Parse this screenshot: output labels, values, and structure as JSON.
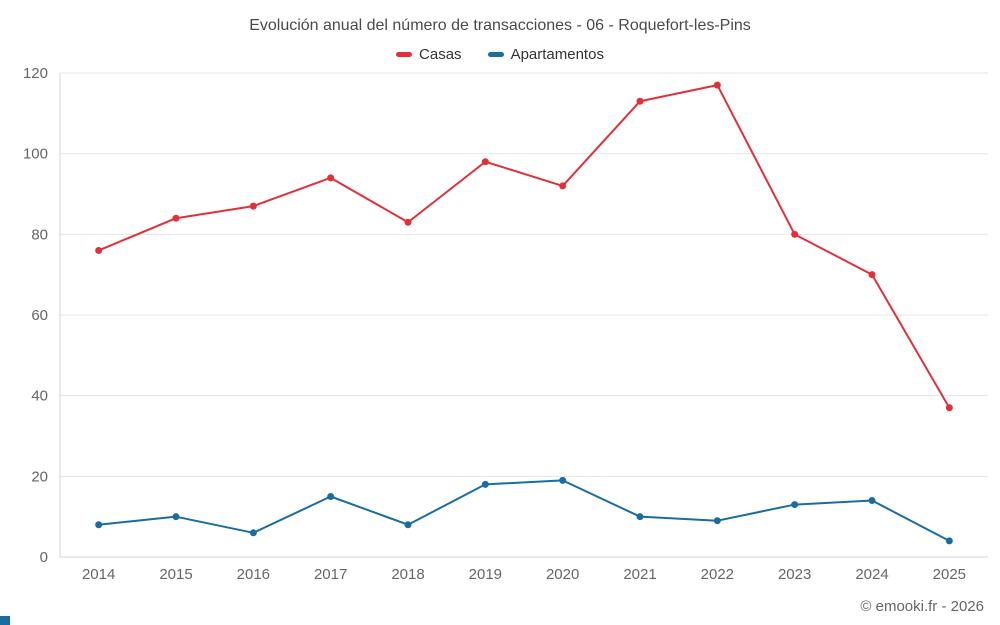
{
  "chart_data": {
    "type": "line",
    "title": "Evolución anual del número de transacciones - 06 - Roquefort-les-Pins",
    "categories": [
      "2014",
      "2015",
      "2016",
      "2017",
      "2018",
      "2019",
      "2020",
      "2021",
      "2022",
      "2023",
      "2024",
      "2025"
    ],
    "series": [
      {
        "name": "Casas",
        "color": "#e0313a",
        "values": [
          76,
          84,
          87,
          94,
          83,
          98,
          92,
          113,
          117,
          80,
          70,
          37
        ]
      },
      {
        "name": "Apartamentos",
        "color": "#1a6d9e",
        "values": [
          8,
          10,
          6,
          15,
          8,
          18,
          19,
          10,
          9,
          13,
          14,
          4
        ]
      }
    ],
    "xlabel": "",
    "ylabel": "",
    "ylim": [
      0,
      120
    ],
    "yticks": [
      0,
      20,
      40,
      60,
      80,
      100,
      120
    ],
    "grid": true,
    "legend_position": "top"
  },
  "colors": {
    "grid": "#e6e6e6",
    "axis": "#ccd6eb",
    "tick_text": "#666666",
    "title_text": "#4a4a4a",
    "accent_square": "#1a6d9e"
  },
  "footer": {
    "attribution": "© emooki.fr - 2026"
  }
}
